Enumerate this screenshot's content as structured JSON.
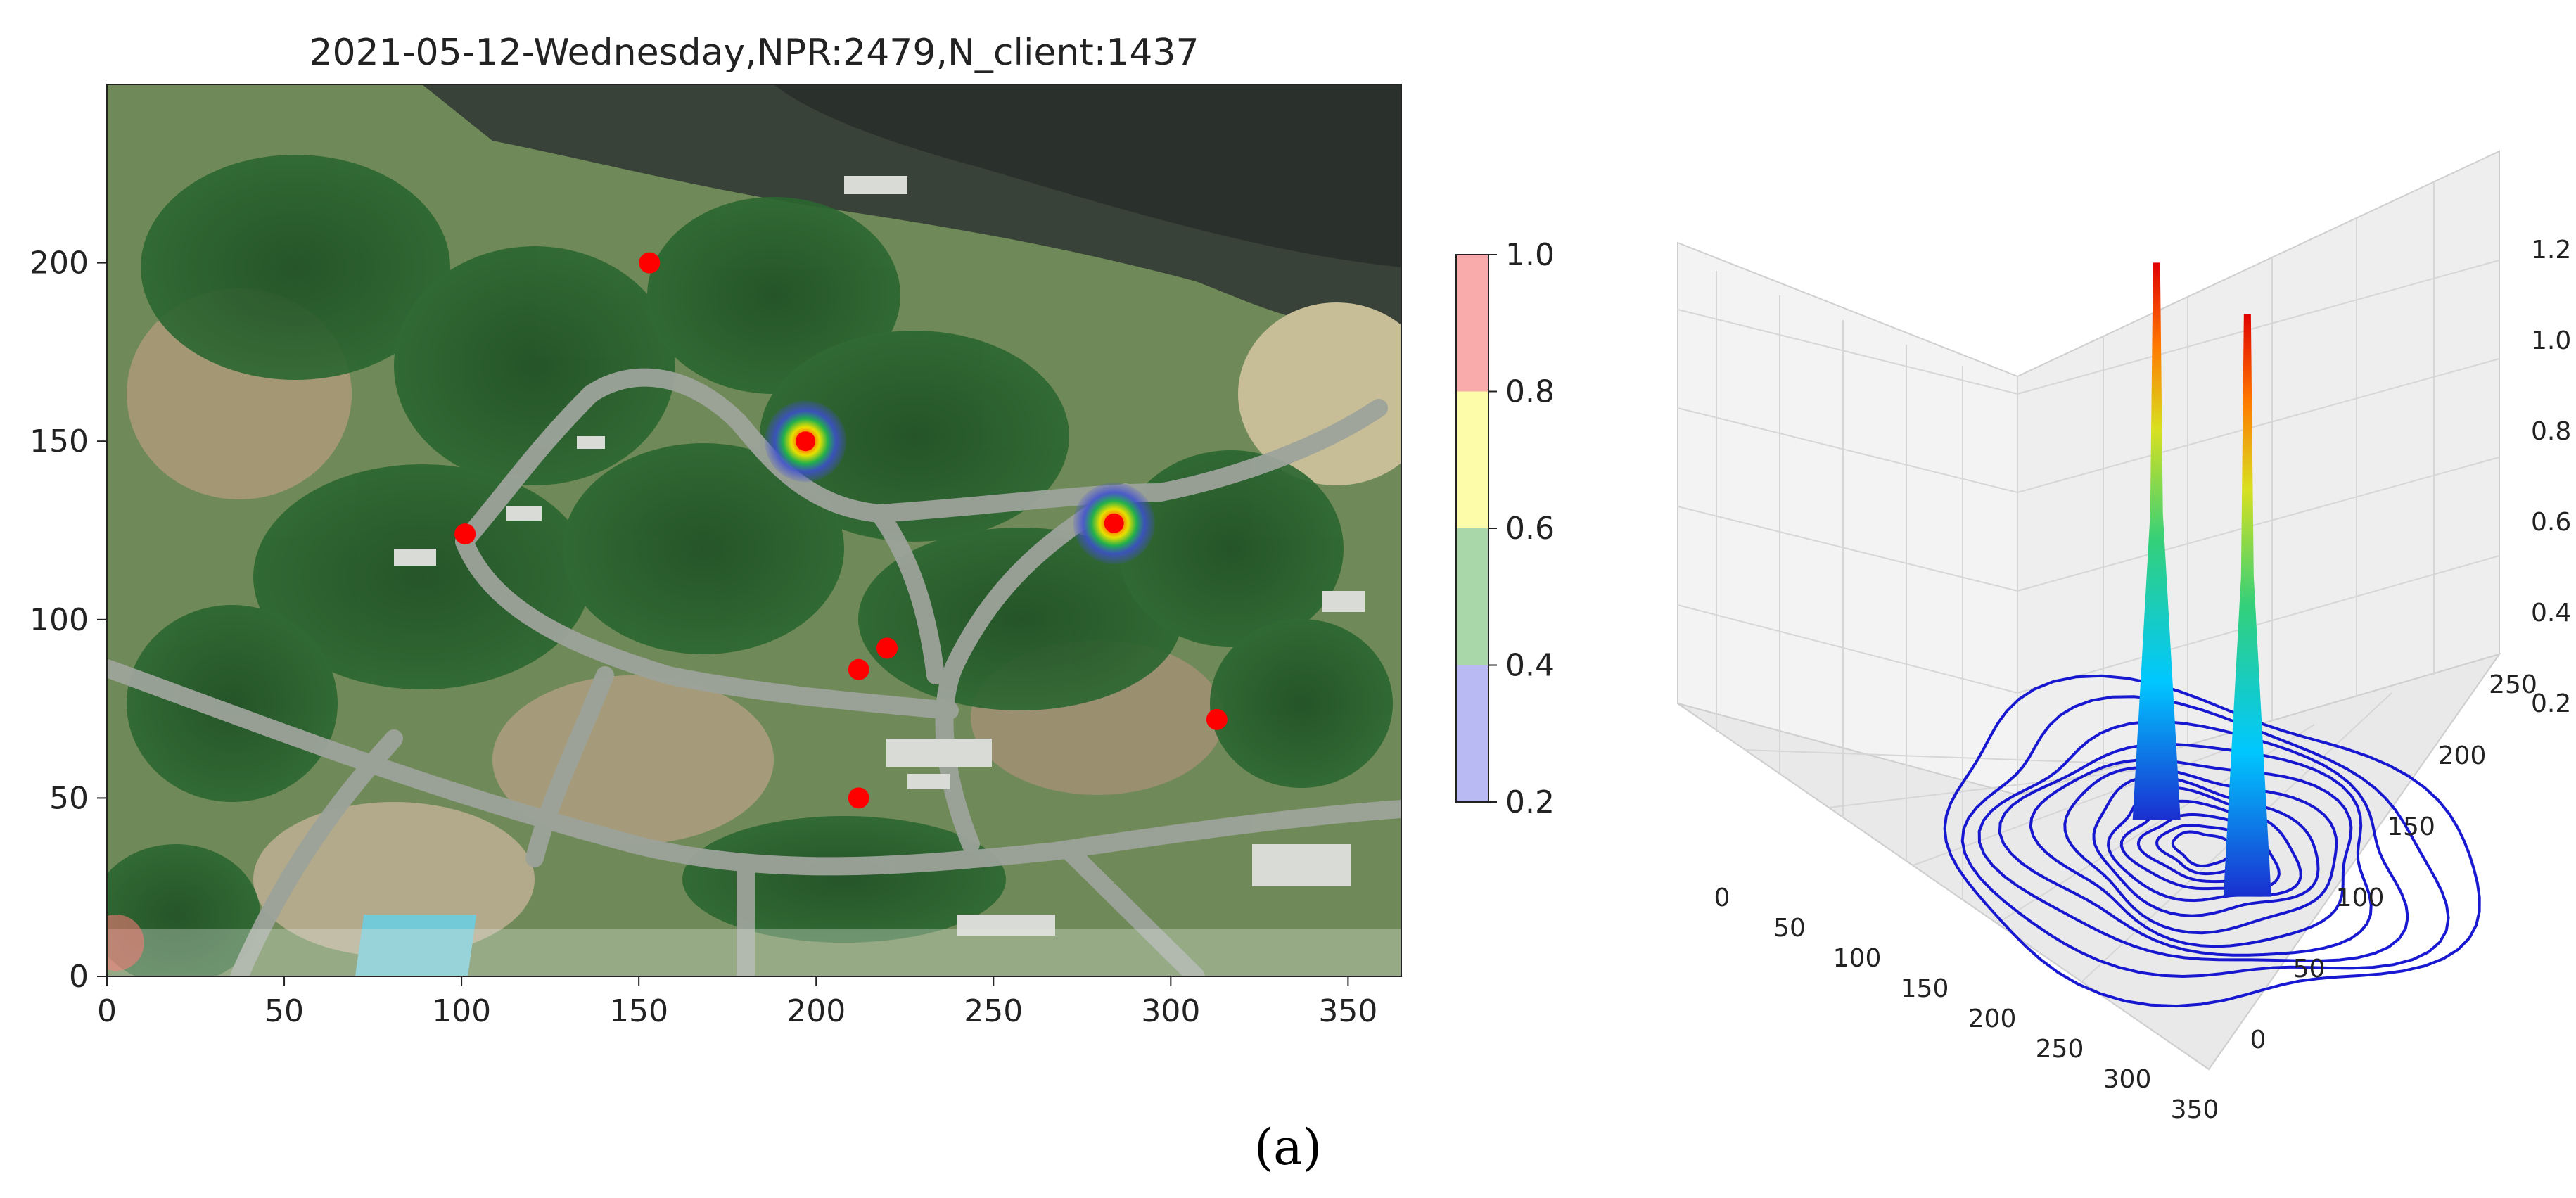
{
  "caption": "(a)",
  "chart_data": [
    {
      "type": "scatter",
      "title": "2021-05-12-Wednesday,NPR:2479,N_client:1437",
      "xlabel": "",
      "ylabel": "",
      "xlim": [
        0,
        365
      ],
      "ylim": [
        0,
        250
      ],
      "x_ticks": [
        0,
        50,
        100,
        150,
        200,
        250,
        300,
        350
      ],
      "y_ticks": [
        0,
        50,
        100,
        150,
        200
      ],
      "background": "aerial photo of a wooded campsite",
      "points": [
        {
          "x": 153,
          "y": 200
        },
        {
          "x": 101,
          "y": 124
        },
        {
          "x": 220,
          "y": 92
        },
        {
          "x": 212,
          "y": 86
        },
        {
          "x": 313,
          "y": 72
        },
        {
          "x": 212,
          "y": 50
        },
        {
          "x": 3,
          "y": 9
        }
      ],
      "hotspots": [
        {
          "x": 197,
          "y": 150
        },
        {
          "x": 284,
          "y": 127
        }
      ],
      "point_color": "#ff0000",
      "colorbar": {
        "ticks": [
          "0.2",
          "0.4",
          "0.6",
          "0.8",
          "1.0"
        ],
        "bands": [
          {
            "from": 0.2,
            "to": 0.4,
            "color": "#b9b9f4"
          },
          {
            "from": 0.4,
            "to": 0.6,
            "color": "#a9d7a9"
          },
          {
            "from": 0.6,
            "to": 0.8,
            "color": "#fdfda9"
          },
          {
            "from": 0.8,
            "to": 1.0,
            "color": "#f9abab"
          }
        ]
      },
      "grid": false
    },
    {
      "type": "surface3d",
      "title": "",
      "x_ticks": [
        0,
        50,
        100,
        150,
        200,
        250,
        300,
        350
      ],
      "y_ticks": [
        0,
        50,
        100,
        150,
        200,
        250
      ],
      "z_ticks": [
        0.2,
        0.4,
        0.6,
        0.8,
        1.0,
        1.2
      ],
      "zlim": [
        0,
        1.3
      ],
      "peaks": [
        {
          "x": 197,
          "y": 150,
          "z": 1.1
        },
        {
          "x": 284,
          "y": 127,
          "z": 1.15
        }
      ],
      "contour_color": "#0000cd",
      "grid": true
    }
  ]
}
